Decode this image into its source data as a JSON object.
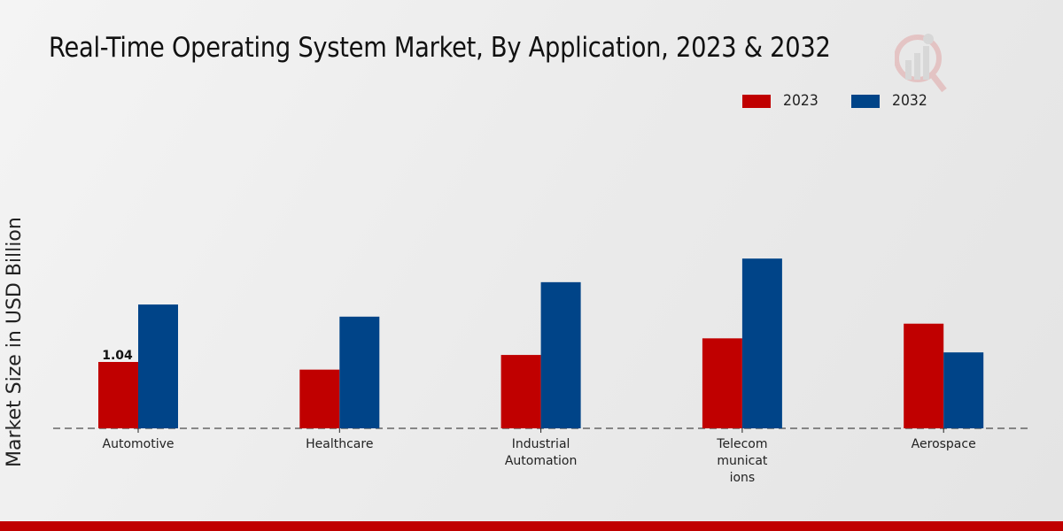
{
  "chart_data": {
    "type": "bar",
    "title": "Real-Time Operating System Market, By Application, 2023 & 2032",
    "xlabel": "",
    "ylabel": "Market Size in USD Billion",
    "categories": [
      "Automotive",
      "Healthcare",
      "Industrial Automation",
      "Telecommunications",
      "Aerospace"
    ],
    "category_display_lines": [
      [
        "Automotive"
      ],
      [
        "Healthcare"
      ],
      [
        "Industrial",
        "Automation"
      ],
      [
        "Telecom",
        "municat",
        "ions"
      ],
      [
        "Aerospace"
      ]
    ],
    "series": [
      {
        "name": "2023",
        "color": "#c00000",
        "values": [
          1.04,
          0.92,
          1.15,
          1.41,
          1.64
        ]
      },
      {
        "name": "2032",
        "color": "#004488",
        "values": [
          1.94,
          1.75,
          2.29,
          2.66,
          1.19
        ]
      }
    ],
    "data_labels": [
      {
        "series": "2023",
        "category": "Automotive",
        "text": "1.04"
      }
    ],
    "ylim": [
      0,
      3.6
    ],
    "grid": false,
    "legend_position": "top-right"
  },
  "footer_color": "#c00000"
}
